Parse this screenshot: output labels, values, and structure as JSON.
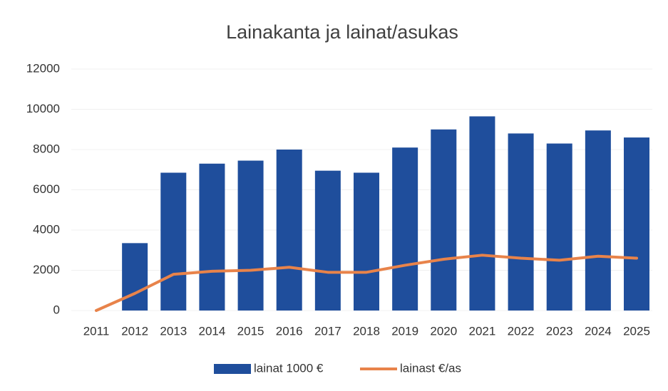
{
  "chart_data": {
    "type": "bar",
    "title": "Lainakanta  ja lainat/asukas",
    "categories": [
      "2011",
      "2012",
      "2013",
      "2014",
      "2015",
      "2016",
      "2017",
      "2018",
      "2019",
      "2020",
      "2021",
      "2022",
      "2023",
      "2024",
      "2025"
    ],
    "series": [
      {
        "name": "lainat 1000 €",
        "color": "#1f4e9c",
        "type": "bar",
        "values": [
          null,
          3350,
          6850,
          7300,
          7450,
          8000,
          6950,
          6850,
          8100,
          9000,
          9650,
          8800,
          8300,
          8950,
          8600
        ]
      },
      {
        "name": "lainast €/as",
        "color": "#e8834a",
        "type": "line",
        "values": [
          0,
          850,
          1800,
          1950,
          2000,
          2150,
          1900,
          1900,
          2250,
          2550,
          2750,
          2600,
          2500,
          2700,
          2600
        ]
      }
    ],
    "ylim": [
      0,
      12000
    ],
    "yticks": [
      0,
      2000,
      4000,
      6000,
      8000,
      10000,
      12000
    ],
    "grid": true,
    "legend": "bottom"
  }
}
